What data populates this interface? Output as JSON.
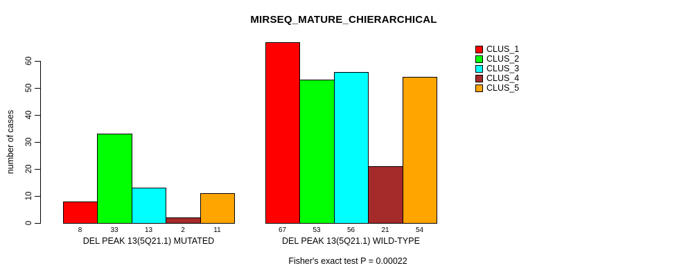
{
  "chart_data": {
    "type": "bar",
    "title": "MIRSEQ_MATURE_CHIERARCHICAL",
    "xlabel": "",
    "ylabel": "number of cases",
    "ylim": [
      0,
      67
    ],
    "yticks": [
      0,
      10,
      20,
      30,
      40,
      50,
      60
    ],
    "grid": false,
    "legend_position": "top-right",
    "bar_border_color": "#000000",
    "background_color": "#ffffff",
    "groups": [
      {
        "label": "DEL PEAK 13(5Q21.1) MUTATED",
        "values": [
          8,
          33,
          13,
          2,
          11
        ]
      },
      {
        "label": "DEL PEAK 13(5Q21.1) WILD-TYPE",
        "values": [
          67,
          53,
          56,
          21,
          54
        ]
      }
    ],
    "series": [
      {
        "name": "CLUS_1",
        "color": "#FF0000",
        "values": [
          8,
          67
        ]
      },
      {
        "name": "CLUS_2",
        "color": "#00FF00",
        "values": [
          33,
          53
        ]
      },
      {
        "name": "CLUS_3",
        "color": "#00FFFF",
        "values": [
          13,
          56
        ]
      },
      {
        "name": "CLUS_4",
        "color": "#A52A2A",
        "values": [
          2,
          21
        ]
      },
      {
        "name": "CLUS_5",
        "color": "#FFA500",
        "values": [
          11,
          54
        ]
      }
    ],
    "bar_value_labels_shown": true,
    "annotation": "Fisher's exact test P = 0.00022"
  }
}
